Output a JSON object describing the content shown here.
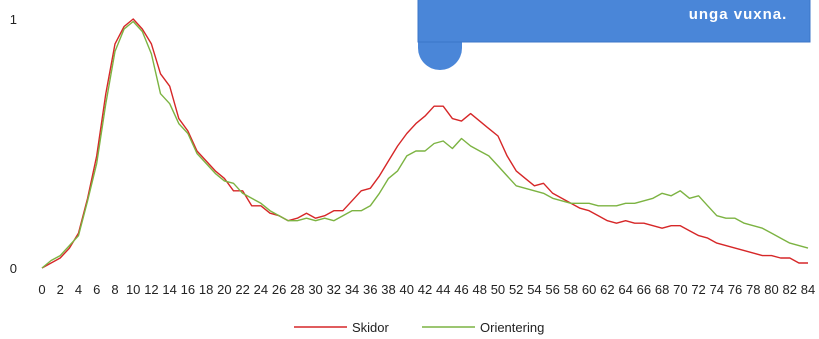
{
  "callout": {
    "text": "unga vuxna.",
    "fill_color": "#4a86d8",
    "border_color": "#3b75c8"
  },
  "chart_data": {
    "type": "line",
    "title": "",
    "xlabel": "",
    "ylabel": "",
    "ylim": [
      0,
      1
    ],
    "xlim": [
      0,
      84
    ],
    "y_ticks": [
      "0",
      "1"
    ],
    "x_ticks": [
      "0",
      "2",
      "4",
      "6",
      "8",
      "10",
      "12",
      "14",
      "16",
      "18",
      "20",
      "22",
      "24",
      "26",
      "28",
      "30",
      "32",
      "34",
      "36",
      "38",
      "40",
      "42",
      "44",
      "46",
      "48",
      "50",
      "52",
      "54",
      "56",
      "58",
      "60",
      "62",
      "64",
      "66",
      "68",
      "70",
      "72",
      "74",
      "76",
      "78",
      "80",
      "82",
      "84"
    ],
    "grid": false,
    "legend_position": "bottom",
    "x": [
      0,
      1,
      2,
      3,
      4,
      5,
      6,
      7,
      8,
      9,
      10,
      11,
      12,
      13,
      14,
      15,
      16,
      17,
      18,
      19,
      20,
      21,
      22,
      23,
      24,
      25,
      26,
      27,
      28,
      29,
      30,
      31,
      32,
      33,
      34,
      35,
      36,
      37,
      38,
      39,
      40,
      41,
      42,
      43,
      44,
      45,
      46,
      47,
      48,
      49,
      50,
      51,
      52,
      53,
      54,
      55,
      56,
      57,
      58,
      59,
      60,
      61,
      62,
      63,
      64,
      65,
      66,
      67,
      68,
      69,
      70,
      71,
      72,
      73,
      74,
      75,
      76,
      77,
      78,
      79,
      80,
      81,
      82,
      83,
      84
    ],
    "series": [
      {
        "name": "Skidor",
        "color": "#d62728",
        "values": [
          0.0,
          0.02,
          0.04,
          0.08,
          0.14,
          0.28,
          0.45,
          0.7,
          0.9,
          0.97,
          1.0,
          0.96,
          0.9,
          0.78,
          0.73,
          0.6,
          0.55,
          0.47,
          0.43,
          0.39,
          0.36,
          0.31,
          0.31,
          0.25,
          0.25,
          0.22,
          0.21,
          0.19,
          0.2,
          0.22,
          0.2,
          0.21,
          0.23,
          0.23,
          0.27,
          0.31,
          0.32,
          0.37,
          0.43,
          0.49,
          0.54,
          0.58,
          0.61,
          0.65,
          0.65,
          0.6,
          0.59,
          0.62,
          0.59,
          0.56,
          0.53,
          0.45,
          0.39,
          0.36,
          0.33,
          0.34,
          0.3,
          0.28,
          0.26,
          0.24,
          0.23,
          0.21,
          0.19,
          0.18,
          0.19,
          0.18,
          0.18,
          0.17,
          0.16,
          0.17,
          0.17,
          0.15,
          0.13,
          0.12,
          0.1,
          0.09,
          0.08,
          0.07,
          0.06,
          0.05,
          0.05,
          0.04,
          0.04,
          0.02,
          0.02
        ]
      },
      {
        "name": "Orientering",
        "color": "#7cb342",
        "values": [
          0.0,
          0.03,
          0.05,
          0.09,
          0.13,
          0.27,
          0.42,
          0.66,
          0.87,
          0.96,
          0.99,
          0.95,
          0.86,
          0.7,
          0.66,
          0.58,
          0.54,
          0.46,
          0.42,
          0.38,
          0.35,
          0.34,
          0.3,
          0.28,
          0.26,
          0.23,
          0.21,
          0.19,
          0.19,
          0.2,
          0.19,
          0.2,
          0.19,
          0.21,
          0.23,
          0.23,
          0.25,
          0.3,
          0.36,
          0.39,
          0.45,
          0.47,
          0.47,
          0.5,
          0.51,
          0.48,
          0.52,
          0.49,
          0.47,
          0.45,
          0.41,
          0.37,
          0.33,
          0.32,
          0.31,
          0.3,
          0.28,
          0.27,
          0.26,
          0.26,
          0.26,
          0.25,
          0.25,
          0.25,
          0.26,
          0.26,
          0.27,
          0.28,
          0.3,
          0.29,
          0.31,
          0.28,
          0.29,
          0.25,
          0.21,
          0.2,
          0.2,
          0.18,
          0.17,
          0.16,
          0.14,
          0.12,
          0.1,
          0.09,
          0.08
        ]
      }
    ]
  }
}
